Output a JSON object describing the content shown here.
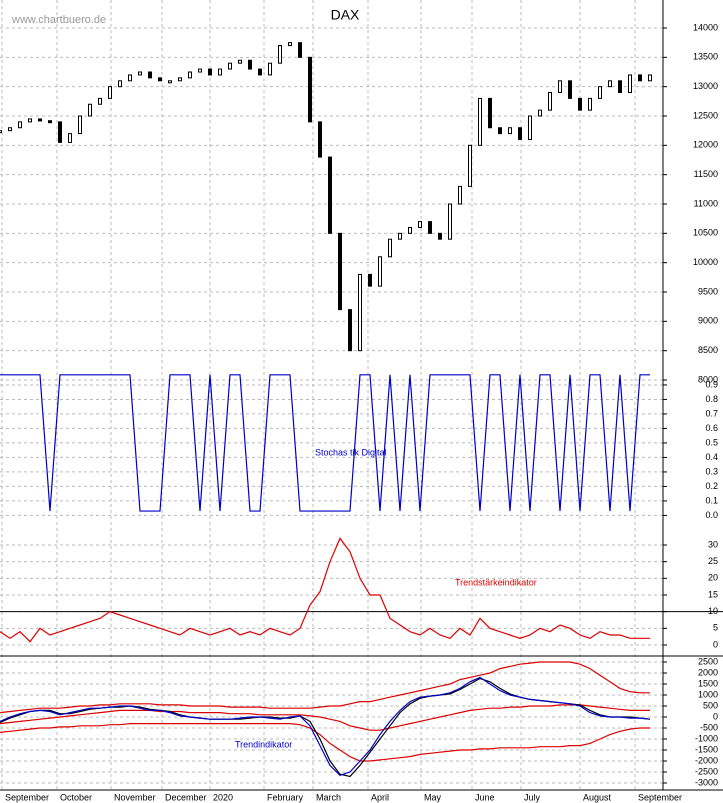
{
  "chart_data": [
    {
      "type": "candle",
      "title": "DAX",
      "watermark": "www.chartbuero.de",
      "color": "#000000",
      "x": [
        0,
        1,
        2,
        3,
        4,
        5,
        6,
        7,
        8,
        9,
        10,
        11,
        12,
        13,
        14,
        15,
        16,
        17,
        18,
        19,
        20,
        21,
        22,
        23,
        24,
        25,
        26,
        27,
        28,
        29,
        30,
        31,
        32,
        33,
        34,
        35,
        36,
        37,
        38,
        39,
        40,
        41,
        42,
        43,
        44,
        45,
        46,
        47,
        48,
        49,
        50,
        51,
        52,
        53,
        54,
        55,
        56,
        57,
        58,
        59,
        60,
        61,
        62,
        63,
        64,
        65
      ],
      "xlim": [
        0,
        66
      ],
      "values": [
        12250,
        12300,
        12400,
        12450,
        12420,
        12400,
        12050,
        12200,
        12500,
        12700,
        12800,
        13000,
        13100,
        13200,
        13250,
        13150,
        13100,
        13100,
        13150,
        13250,
        13300,
        13200,
        13300,
        13400,
        13450,
        13300,
        13200,
        13400,
        13700,
        13750,
        13500,
        12400,
        11800,
        10500,
        9200,
        8500,
        9800,
        9600,
        10100,
        10400,
        10500,
        10600,
        10700,
        10500,
        10400,
        11000,
        11300,
        12000,
        12800,
        12300,
        12200,
        12300,
        12100,
        12500,
        12600,
        12900,
        13100,
        12800,
        12600,
        12800,
        13000,
        13100,
        12900,
        13200,
        13100,
        13200
      ],
      "ylim": [
        7864,
        14477
      ],
      "yticks": [
        8000,
        8500,
        9000,
        9500,
        10000,
        10500,
        11000,
        11500,
        12000,
        12500,
        13000,
        13500,
        14000
      ],
      "grid": true
    },
    {
      "type": "line",
      "annotation": "Stochas tik Digital",
      "color": "#0000cc",
      "values": [
        0.97,
        0.97,
        0.97,
        0.97,
        0.97,
        0.03,
        0.97,
        0.97,
        0.97,
        0.97,
        0.97,
        0.97,
        0.97,
        0.97,
        0.03,
        0.03,
        0.03,
        0.97,
        0.97,
        0.97,
        0.03,
        0.97,
        0.03,
        0.97,
        0.97,
        0.03,
        0.03,
        0.97,
        0.97,
        0.97,
        0.03,
        0.03,
        0.03,
        0.03,
        0.03,
        0.03,
        0.97,
        0.97,
        0.03,
        0.97,
        0.03,
        0.97,
        0.03,
        0.97,
        0.97,
        0.97,
        0.97,
        0.97,
        0.03,
        0.97,
        0.97,
        0.03,
        0.97,
        0.03,
        0.97,
        0.97,
        0.03,
        0.97,
        0.03,
        0.97,
        0.97,
        0.03,
        0.97,
        0.03,
        0.97,
        0.97
      ],
      "ylim": [
        -0.066,
        1.072
      ],
      "yticks": [
        {
          "value": 0,
          "label": "0.0"
        },
        0.1,
        0.2,
        0.3,
        0.4,
        0.5,
        0.6,
        0.7,
        0.8,
        0.9
      ],
      "grid": true
    },
    {
      "type": "line",
      "annotation": "Trendstärkeindikator",
      "color": "#dd0000",
      "reference_line": 10,
      "values": [
        4,
        2,
        4,
        1,
        5,
        3,
        4,
        5,
        6,
        7,
        8,
        10,
        9,
        8,
        7,
        6,
        5,
        4,
        3,
        5,
        4,
        3,
        4,
        5,
        3,
        4,
        3,
        5,
        4,
        3,
        5,
        12,
        16,
        25,
        32,
        28,
        20,
        15,
        15,
        8,
        6,
        4,
        3,
        5,
        3,
        2,
        5,
        3,
        8,
        5,
        4,
        3,
        2,
        3,
        5,
        4,
        6,
        5,
        3,
        2,
        4,
        3,
        3,
        2,
        2,
        2
      ],
      "ylim": [
        -3.3,
        34.5
      ],
      "yticks": [
        0,
        5,
        10,
        15,
        20,
        25,
        30
      ],
      "grid": true
    },
    {
      "type": "line",
      "annotation": "Trendindikator",
      "series": [
        {
          "color": "#dd0000",
          "values": [
            200,
            250,
            300,
            350,
            400,
            400,
            400,
            450,
            500,
            500,
            550,
            550,
            600,
            600,
            600,
            600,
            550,
            550,
            550,
            500,
            500,
            500,
            500,
            450,
            450,
            450,
            450,
            400,
            400,
            400,
            400,
            400,
            450,
            500,
            500,
            600,
            700,
            700,
            800,
            900,
            1000,
            1100,
            1200,
            1300,
            1400,
            1500,
            1700,
            1800,
            1900,
            2000,
            2200,
            2300,
            2400,
            2450,
            2500,
            2500,
            2500,
            2500,
            2400,
            2200,
            1900,
            1600,
            1300,
            1150,
            1100,
            1100
          ]
        },
        {
          "color": "#dd0000",
          "values": [
            -300,
            -250,
            -200,
            -150,
            -100,
            -50,
            0,
            50,
            100,
            150,
            200,
            250,
            300,
            300,
            300,
            300,
            250,
            250,
            250,
            200,
            200,
            200,
            200,
            150,
            150,
            150,
            100,
            100,
            100,
            100,
            100,
            50,
            0,
            -100,
            -200,
            -400,
            -500,
            -600,
            -600,
            -500,
            -400,
            -300,
            -200,
            -100,
            0,
            100,
            200,
            300,
            350,
            400,
            400,
            450,
            450,
            500,
            500,
            500,
            550,
            550,
            550,
            500,
            450,
            400,
            350,
            300,
            300,
            300
          ]
        },
        {
          "color": "#dd0000",
          "values": [
            -700,
            -650,
            -600,
            -550,
            -500,
            -500,
            -450,
            -450,
            -400,
            -400,
            -400,
            -350,
            -350,
            -300,
            -300,
            -300,
            -300,
            -300,
            -300,
            -300,
            -300,
            -300,
            -300,
            -300,
            -300,
            -300,
            -300,
            -300,
            -300,
            -300,
            -350,
            -500,
            -800,
            -1200,
            -1500,
            -1800,
            -2000,
            -2000,
            -1950,
            -1900,
            -1850,
            -1800,
            -1700,
            -1650,
            -1600,
            -1550,
            -1500,
            -1500,
            -1450,
            -1450,
            -1400,
            -1400,
            -1400,
            -1400,
            -1350,
            -1350,
            -1350,
            -1300,
            -1300,
            -1200,
            -1000,
            -800,
            -650,
            -550,
            -500,
            -500
          ]
        },
        {
          "color": "#000000",
          "values": [
            -250,
            -50,
            100,
            250,
            300,
            300,
            150,
            150,
            250,
            350,
            400,
            450,
            450,
            500,
            450,
            350,
            300,
            250,
            100,
            0,
            -50,
            -100,
            -100,
            -100,
            -100,
            -50,
            0,
            0,
            -50,
            -50,
            50,
            -200,
            -1000,
            -2000,
            -2600,
            -2700,
            -2200,
            -1600,
            -1000,
            -400,
            200,
            600,
            850,
            950,
            1000,
            1050,
            1250,
            1500,
            1750,
            1600,
            1300,
            1050,
            900,
            800,
            750,
            700,
            650,
            600,
            550,
            300,
            100,
            0,
            0,
            0,
            -50,
            -100
          ]
        },
        {
          "color": "#0000cc",
          "values": [
            -200,
            0,
            150,
            250,
            300,
            250,
            100,
            200,
            300,
            400,
            400,
            450,
            500,
            500,
            400,
            300,
            300,
            200,
            50,
            0,
            -50,
            -100,
            -100,
            -100,
            -50,
            0,
            0,
            -50,
            -100,
            0,
            50,
            -400,
            -1300,
            -2200,
            -2650,
            -2500,
            -2000,
            -1500,
            -800,
            -200,
            300,
            700,
            900,
            950,
            1000,
            1100,
            1300,
            1600,
            1800,
            1500,
            1200,
            1000,
            900,
            800,
            750,
            700,
            650,
            600,
            500,
            200,
            50,
            0,
            0,
            -50,
            -50,
            -100
          ]
        }
      ],
      "ylim": [
        -3318,
        2773
      ],
      "yticks": [
        -3000,
        -2500,
        -2000,
        -1500,
        -1000,
        -500,
        0,
        500,
        1000,
        1500,
        2000,
        2500
      ],
      "grid": true,
      "xticks": [
        {
          "value": 0.2,
          "label": "September"
        },
        {
          "value": 5.7,
          "label": "October"
        },
        {
          "value": 11.1,
          "label": "November"
        },
        {
          "value": 16.2,
          "label": "December"
        },
        {
          "value": 21,
          "label": "2020"
        },
        {
          "value": 26.4,
          "label": "February"
        },
        {
          "value": 31.3,
          "label": "March"
        },
        {
          "value": 36.8,
          "label": "April"
        },
        {
          "value": 42.1,
          "label": "May"
        },
        {
          "value": 47.2,
          "label": "June"
        },
        {
          "value": 52.1,
          "label": "July"
        },
        {
          "value": 58,
          "label": "August"
        },
        {
          "value": 63.5,
          "label": "September"
        }
      ]
    }
  ]
}
